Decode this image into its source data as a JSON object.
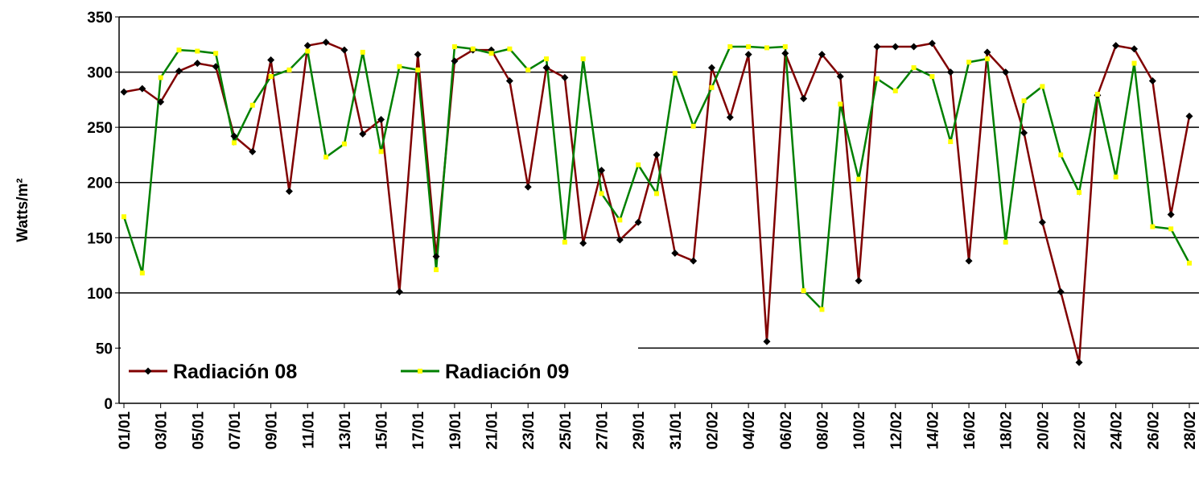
{
  "chart_data": {
    "type": "line",
    "y_label": "Watts/m²",
    "categories": [
      "01/01",
      null,
      "03/01",
      null,
      "05/01",
      null,
      "07/01",
      null,
      "09/01",
      null,
      "11/01",
      null,
      "13/01",
      null,
      "15/01",
      null,
      "17/01",
      null,
      "19/01",
      null,
      "21/01",
      null,
      "23/01",
      null,
      "25/01",
      null,
      "27/01",
      null,
      "29/01",
      null,
      "31/01",
      null,
      "02/02",
      null,
      "04/02",
      null,
      "06/02",
      null,
      "08/02",
      null,
      "10/02",
      null,
      "12/02",
      null,
      "14/02",
      null,
      "16/02",
      null,
      "18/02",
      null,
      "20/02",
      null,
      "22/02",
      null,
      "24/02",
      null,
      "26/02",
      null,
      "28/02"
    ],
    "series": [
      {
        "name": "Radiación 08",
        "color": "#800000",
        "marker_color": "#000000",
        "values": [
          282,
          285,
          273,
          301,
          308,
          305,
          242,
          228,
          311,
          192,
          324,
          327,
          320,
          244,
          257,
          101,
          316,
          133,
          310,
          320,
          320,
          292,
          196,
          304,
          295,
          145,
          211,
          148,
          164,
          225,
          136,
          129,
          304,
          259,
          316,
          56,
          317,
          276,
          316,
          296,
          111,
          323,
          323,
          323,
          326,
          300,
          129,
          318,
          300,
          245,
          164,
          101,
          37,
          279,
          324,
          321,
          292,
          171,
          260
        ]
      },
      {
        "name": "Radiación 09",
        "color": "#008000",
        "marker_color": "#ffff00",
        "values": [
          169,
          118,
          295,
          320,
          319,
          317,
          236,
          270,
          296,
          302,
          319,
          223,
          235,
          318,
          228,
          305,
          302,
          121,
          323,
          321,
          317,
          321,
          302,
          312,
          146,
          312,
          190,
          166,
          216,
          190,
          299,
          251,
          286,
          323,
          323,
          322,
          323,
          102,
          85,
          271,
          203,
          294,
          283,
          304,
          296,
          237,
          309,
          312,
          146,
          274,
          287,
          225,
          191,
          280,
          205,
          308,
          160,
          158,
          127
        ]
      }
    ],
    "ylim": [
      0,
      350
    ],
    "yticks": [
      0,
      50,
      100,
      150,
      200,
      250,
      300,
      350
    ],
    "grid": true,
    "legend": "bottom-left"
  }
}
